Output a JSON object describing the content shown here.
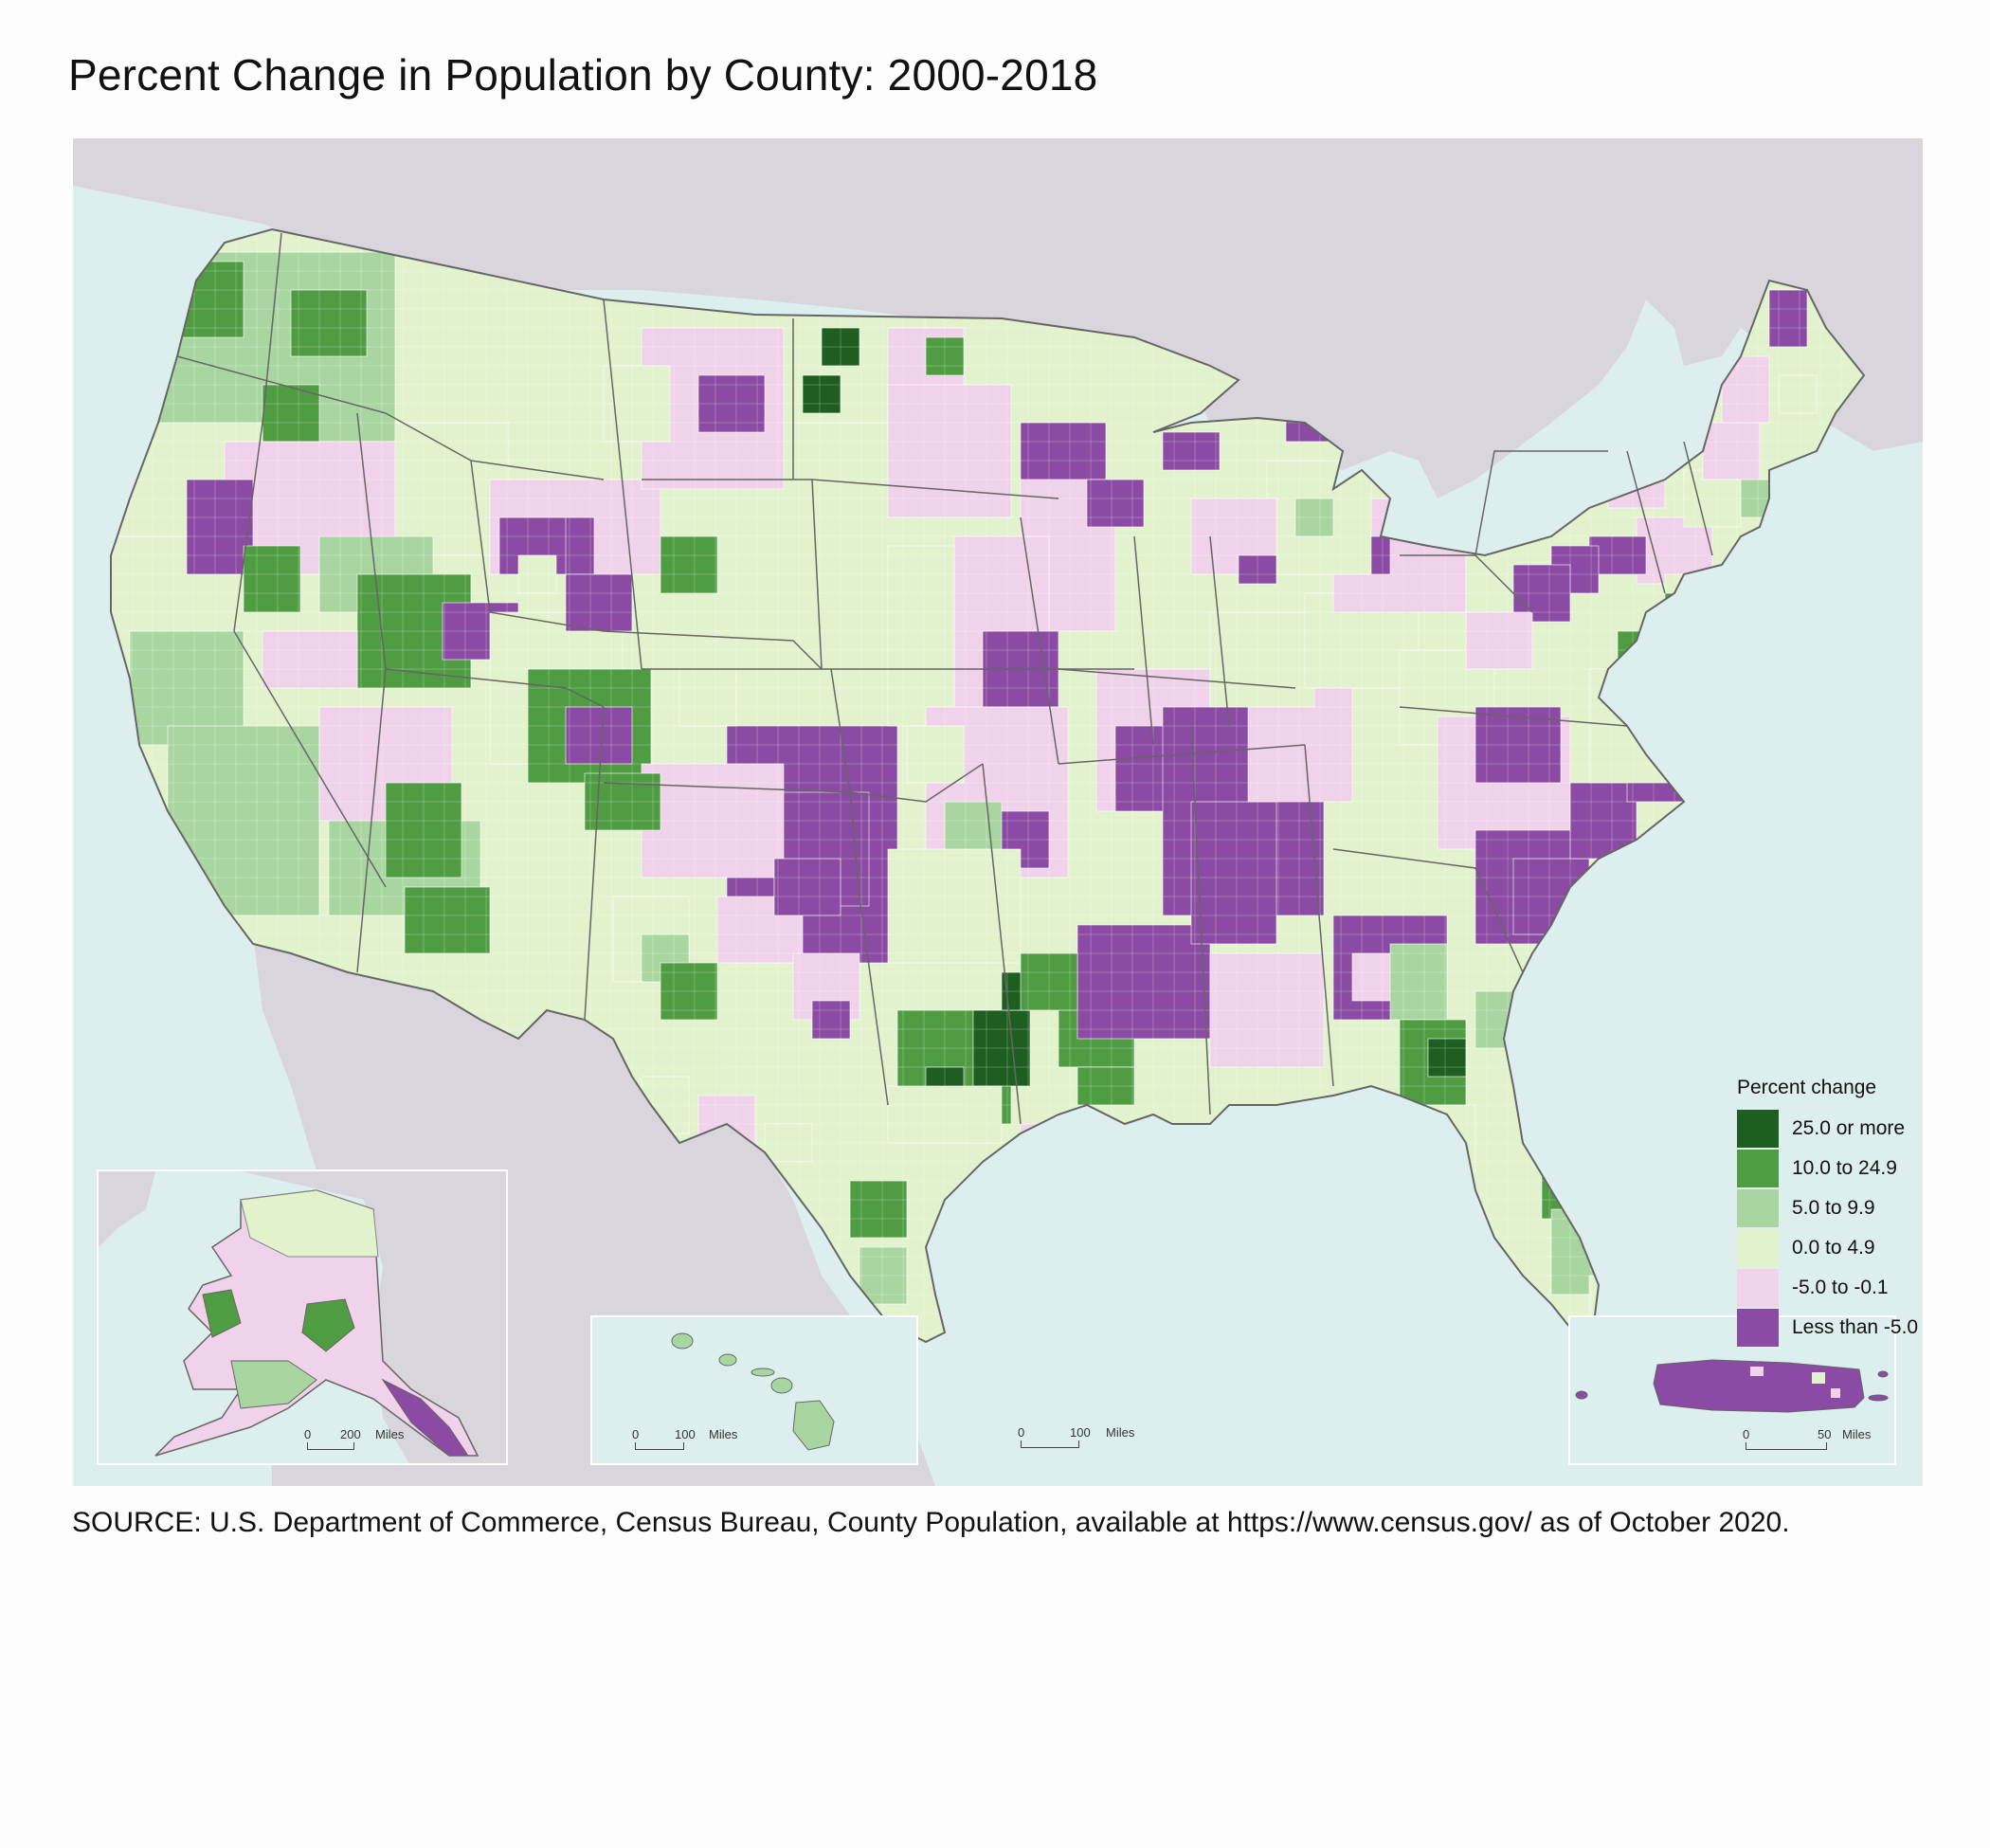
{
  "title": "Percent Change in Population by County: 2000-2018",
  "legend": {
    "title": "Percent change",
    "classes": [
      {
        "label": "25.0 or more",
        "color": "#1e5e20"
      },
      {
        "label": "10.0 to 24.9",
        "color": "#4f9c43"
      },
      {
        "label": "5.0 to 9.9",
        "color": "#a9d6a0"
      },
      {
        "label": "0.0 to 4.9",
        "color": "#e1f2cd"
      },
      {
        "label": "-5.0 to -0.1",
        "color": "#f0d2ea"
      },
      {
        "label": "Less than -5.0",
        "color": "#8b4aa3"
      }
    ]
  },
  "colors": {
    "water": "#dcefee",
    "foreign_land": "#d8d6dc",
    "state_border": "#666666"
  },
  "scalebars": {
    "alaska": {
      "zero": "0",
      "value": "200",
      "unit": "Miles"
    },
    "hawaii": {
      "zero": "0",
      "value": "100",
      "unit": "Miles"
    },
    "conus": {
      "zero": "0",
      "value": "100",
      "unit": "Miles"
    },
    "puerto_rico": {
      "zero": "0",
      "value": "50",
      "unit": "Miles"
    }
  },
  "source": "SOURCE: U.S. Department of Commerce, Census Bureau, County Population, available at https://www.census.gov/ as of October 2020."
}
